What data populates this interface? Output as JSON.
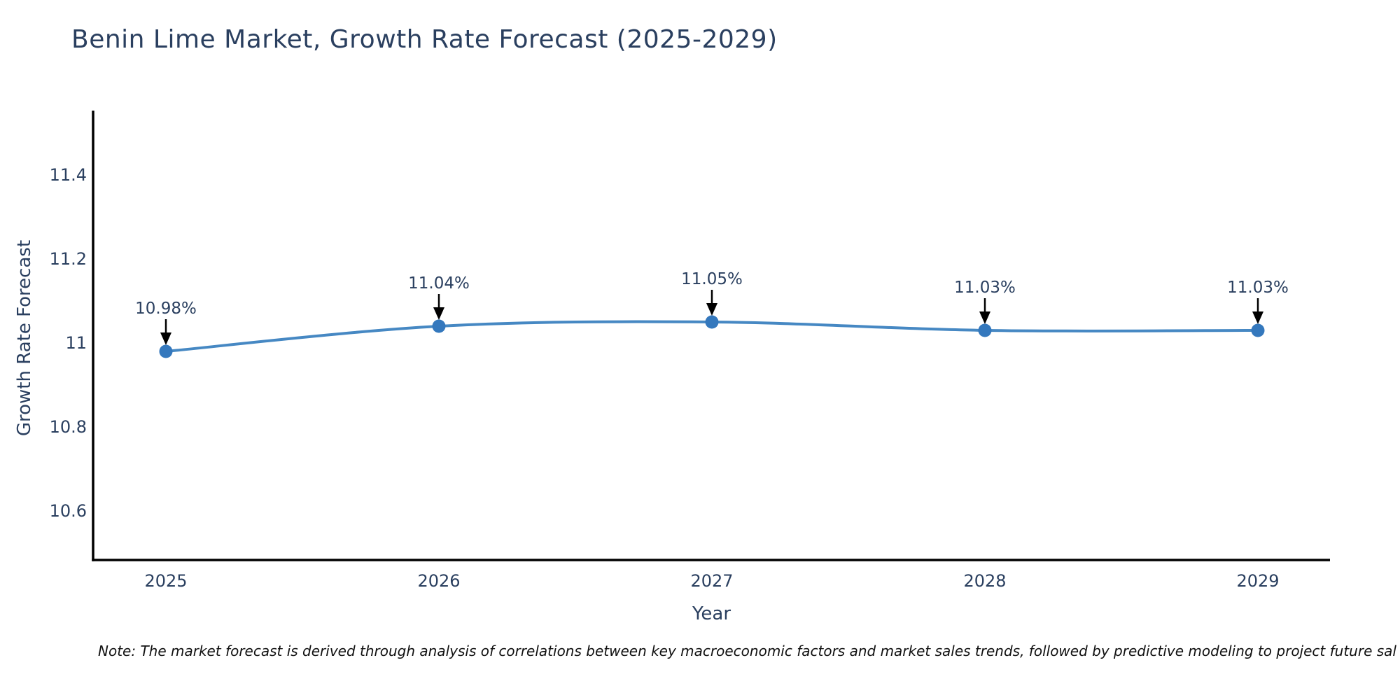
{
  "chart_data": {
    "type": "line",
    "title": "Benin Lime Market, Growth Rate Forecast (2025-2029)",
    "xlabel": "Year",
    "ylabel": "Growth Rate Forecast",
    "categories": [
      "2025",
      "2026",
      "2027",
      "2028",
      "2029"
    ],
    "values": [
      10.98,
      11.04,
      11.05,
      11.03,
      11.03
    ],
    "point_labels": [
      "10.98%",
      "11.04%",
      "11.05%",
      "11.03%",
      "11.03%"
    ],
    "ytick_values": [
      10.6,
      10.8,
      11,
      11.2,
      11.4
    ],
    "ytick_labels": [
      "10.6",
      "10.8",
      "11",
      "11.2",
      "11.4"
    ],
    "ylim": [
      10.48,
      11.55
    ],
    "grid": false,
    "legend_position": "none",
    "annotation_style": "arrow-down-to-point",
    "colors": {
      "line": "#4688c3",
      "marker": "#3478bd",
      "axis": "#000000",
      "tick_text": "#2a3f5f",
      "annotation_text": "#2a3f5f",
      "annotation_arrow": "#000000",
      "background": "#ffffff"
    }
  },
  "note": {
    "text": "Note: The market forecast is derived through analysis of correlations between key macroeconomic factors and market sales trends, followed by predictive modeling to project future sal"
  }
}
